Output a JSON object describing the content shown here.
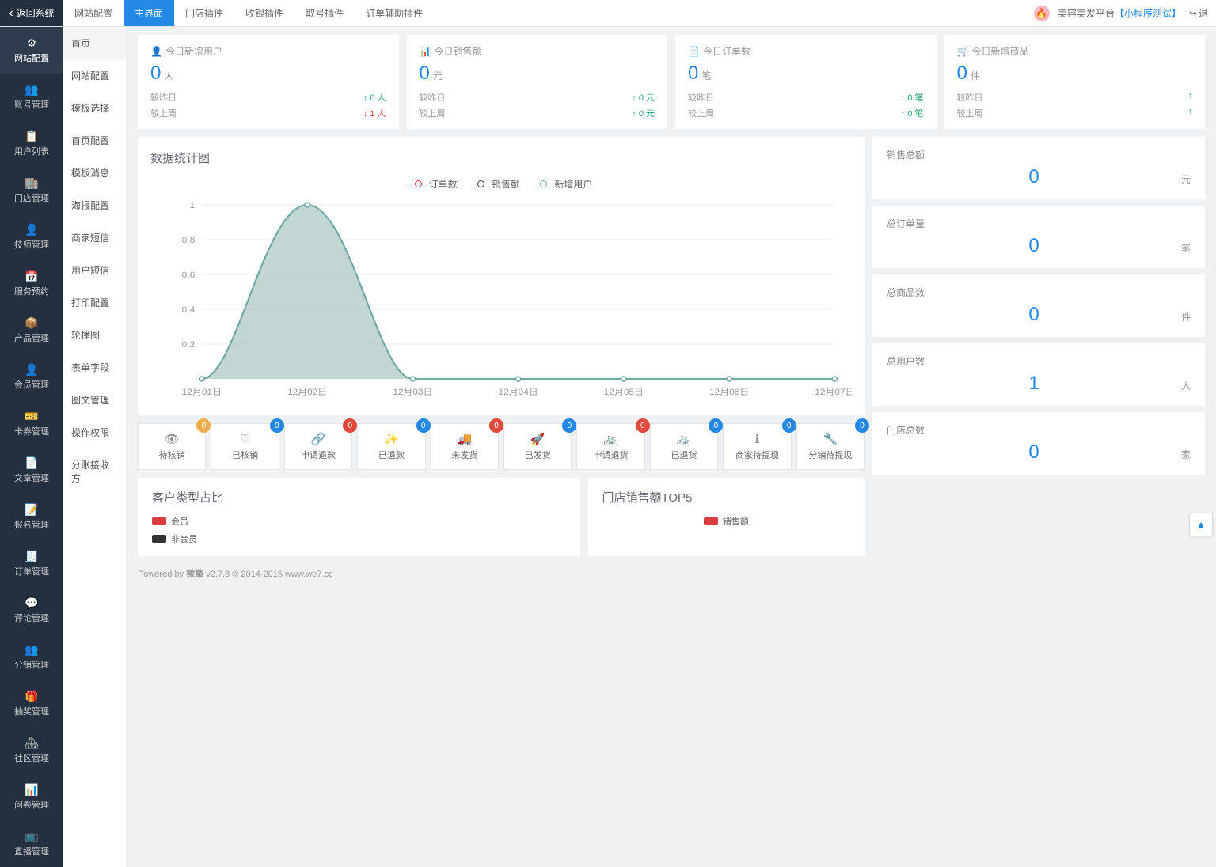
{
  "topnav": {
    "back": "返回系统",
    "tabs": [
      "网站配置",
      "主界面",
      "门店插件",
      "收银插件",
      "取号插件",
      "订单辅助插件"
    ],
    "active_index": 1,
    "brand": "美容美发平台",
    "brand_sub": "【小程序测试】",
    "logout": "退"
  },
  "sidebar_dark": {
    "items": [
      {
        "icon": "⚙",
        "label": "网站配置"
      },
      {
        "icon": "👥",
        "label": "账号管理"
      },
      {
        "icon": "📋",
        "label": "用户列表"
      },
      {
        "icon": "🏬",
        "label": "门店管理"
      },
      {
        "icon": "👤",
        "label": "技师管理"
      },
      {
        "icon": "📅",
        "label": "服务预约"
      },
      {
        "icon": "📦",
        "label": "产品管理"
      },
      {
        "icon": "👤",
        "label": "会员管理"
      },
      {
        "icon": "🎫",
        "label": "卡券管理"
      },
      {
        "icon": "📄",
        "label": "文章管理"
      },
      {
        "icon": "📝",
        "label": "报名管理"
      },
      {
        "icon": "🧾",
        "label": "订单管理"
      },
      {
        "icon": "💬",
        "label": "评论管理"
      },
      {
        "icon": "👥",
        "label": "分销管理"
      },
      {
        "icon": "🎁",
        "label": "抽奖管理"
      },
      {
        "icon": "🏘",
        "label": "社区管理"
      },
      {
        "icon": "📊",
        "label": "问卷管理"
      },
      {
        "icon": "📺",
        "label": "直播管理"
      }
    ],
    "active_index": 0
  },
  "sidebar_light": {
    "items": [
      "首页",
      "网站配置",
      "模板选择",
      "首页配置",
      "模板消息",
      "海报配置",
      "商家短信",
      "用户短信",
      "打印配置",
      "轮播图",
      "表单字段",
      "图文管理",
      "操作权限",
      "分账接收方"
    ],
    "active_index": 0
  },
  "stats": [
    {
      "icon": "👤",
      "title": "今日新增用户",
      "value": "0",
      "unit": "人",
      "cmp1_label": "较昨日",
      "cmp1_val": "0 人",
      "cmp1_dir": "up",
      "cmp2_label": "较上周",
      "cmp2_val": "1 人",
      "cmp2_dir": "down"
    },
    {
      "icon": "📊",
      "title": "今日销售额",
      "value": "0",
      "unit": "元",
      "cmp1_label": "较昨日",
      "cmp1_val": "0 元",
      "cmp1_dir": "up",
      "cmp2_label": "较上周",
      "cmp2_val": "0 元",
      "cmp2_dir": "up"
    },
    {
      "icon": "📄",
      "title": "今日订单数",
      "value": "0",
      "unit": "笔",
      "cmp1_label": "较昨日",
      "cmp1_val": "0 笔",
      "cmp1_dir": "up",
      "cmp2_label": "较上周",
      "cmp2_val": "0 笔",
      "cmp2_dir": "up"
    },
    {
      "icon": "🛒",
      "title": "今日新增商品",
      "value": "0",
      "unit": "件",
      "cmp1_label": "较昨日",
      "cmp1_val": "",
      "cmp1_dir": "up",
      "cmp2_label": "较上周",
      "cmp2_val": "",
      "cmp2_dir": "up"
    }
  ],
  "chart": {
    "title": "数据统计图",
    "legend": [
      "订单数",
      "销售额",
      "新增用户"
    ],
    "type": "area",
    "x_labels": [
      "12月01日",
      "12月02日",
      "12月03日",
      "12月04日",
      "12月05日",
      "12月06日",
      "12月07日"
    ],
    "y_ticks": [
      0.2,
      0.4,
      0.6,
      0.8,
      1
    ],
    "ylim": [
      0,
      1
    ],
    "series_user": [
      0,
      1,
      0,
      0,
      0,
      0,
      0
    ],
    "area_fill": "#a8c4c0",
    "area_stroke": "#6fa8a4",
    "grid_color": "#e8e8e8",
    "axis_color": "#999",
    "marker_radius": 3
  },
  "status_buttons": [
    {
      "icon": "👁",
      "label": "待核销",
      "count": "0",
      "color": "bg-orange"
    },
    {
      "icon": "♡",
      "label": "已核销",
      "count": "0",
      "color": "bg-blue"
    },
    {
      "icon": "🔗",
      "label": "申请退款",
      "count": "0",
      "color": "bg-red"
    },
    {
      "icon": "✨",
      "label": "已退款",
      "count": "0",
      "color": "bg-blue"
    },
    {
      "icon": "🚚",
      "label": "未发货",
      "count": "0",
      "color": "bg-red"
    },
    {
      "icon": "🚀",
      "label": "已发货",
      "count": "0",
      "color": "bg-blue"
    },
    {
      "icon": "🚲",
      "label": "申请退货",
      "count": "0",
      "color": "bg-red"
    },
    {
      "icon": "🚲",
      "label": "已退货",
      "count": "0",
      "color": "bg-blue"
    },
    {
      "icon": "ℹ",
      "label": "商家待提现",
      "count": "0",
      "color": "bg-blue"
    },
    {
      "icon": "🔧",
      "label": "分销待提现",
      "count": "0",
      "color": "bg-blue"
    }
  ],
  "totals": [
    {
      "title": "销售总额",
      "value": "0",
      "unit": "元"
    },
    {
      "title": "总订单量",
      "value": "0",
      "unit": "笔"
    },
    {
      "title": "总商品数",
      "value": "0",
      "unit": "件"
    },
    {
      "title": "总用户数",
      "value": "1",
      "unit": "人"
    },
    {
      "title": "门店总数",
      "value": "0",
      "unit": "家"
    }
  ],
  "pie": {
    "title": "客户类型占比",
    "lg1": "会员",
    "lg2": "非会员"
  },
  "top5": {
    "title": "门店销售额TOP5",
    "lg": "销售额"
  },
  "footer": {
    "powered": "Powered by ",
    "brand": "微擎",
    "ver": " v2.7.8 © 2014-2015 www.we7.cc"
  }
}
